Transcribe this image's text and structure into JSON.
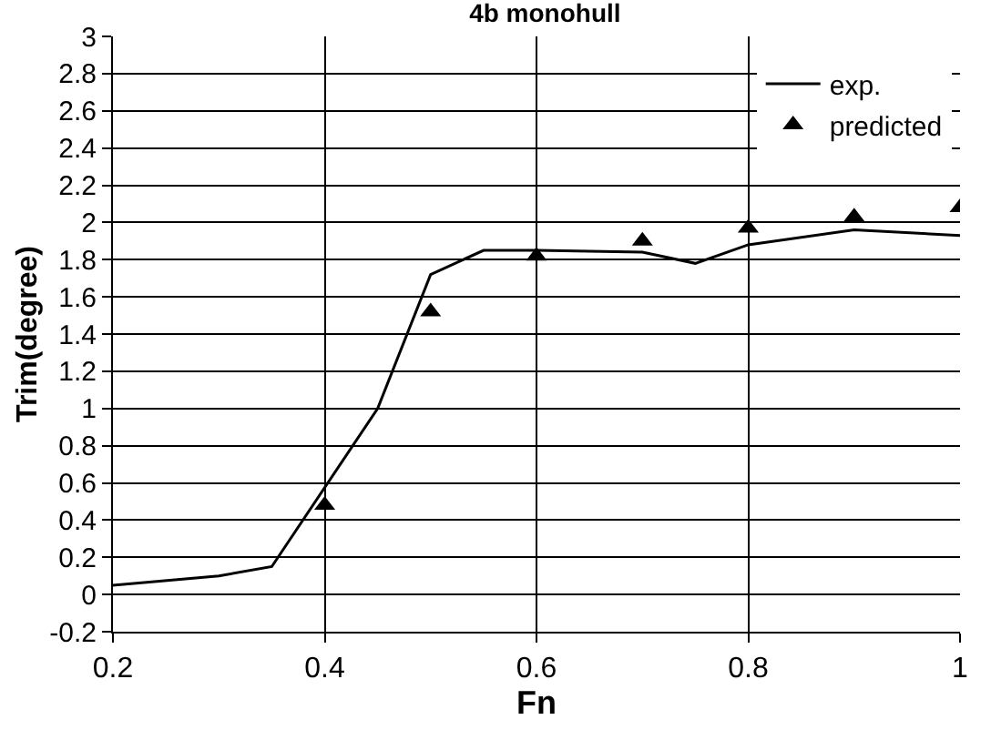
{
  "chart_data": {
    "type": "line",
    "title": "4b monohull",
    "xlabel": "Fn",
    "ylabel": "Trim(degree)",
    "series": [
      {
        "name": "exp.",
        "color": "#000000",
        "marker": "none",
        "x": [
          0.2,
          0.3,
          0.35,
          0.45,
          0.5,
          0.55,
          0.6,
          0.7,
          0.75,
          0.8,
          0.9,
          1.0
        ],
        "values": [
          0.05,
          0.1,
          0.15,
          1.0,
          1.72,
          1.85,
          1.85,
          1.84,
          1.78,
          1.88,
          1.96,
          1.93
        ]
      },
      {
        "name": "predicted",
        "type": "scatter",
        "color": "#000000",
        "marker": "triangle",
        "x": [
          0.4,
          0.5,
          0.6,
          0.7,
          0.8,
          0.9,
          1.0
        ],
        "values": [
          0.48,
          1.52,
          1.82,
          1.9,
          1.97,
          2.03,
          2.08
        ]
      }
    ],
    "xlim": [
      0.2,
      1
    ],
    "xticks": [
      0.2,
      0.4,
      0.6,
      0.8,
      1
    ],
    "ylim": [
      -0.2,
      3
    ],
    "yticks": [
      -0.2,
      0,
      0.2,
      0.4,
      0.6,
      0.8,
      1,
      1.2,
      1.4,
      1.6,
      1.8,
      2,
      2.2,
      2.4,
      2.6,
      2.8,
      3
    ],
    "grid": true,
    "legend": "top right"
  }
}
